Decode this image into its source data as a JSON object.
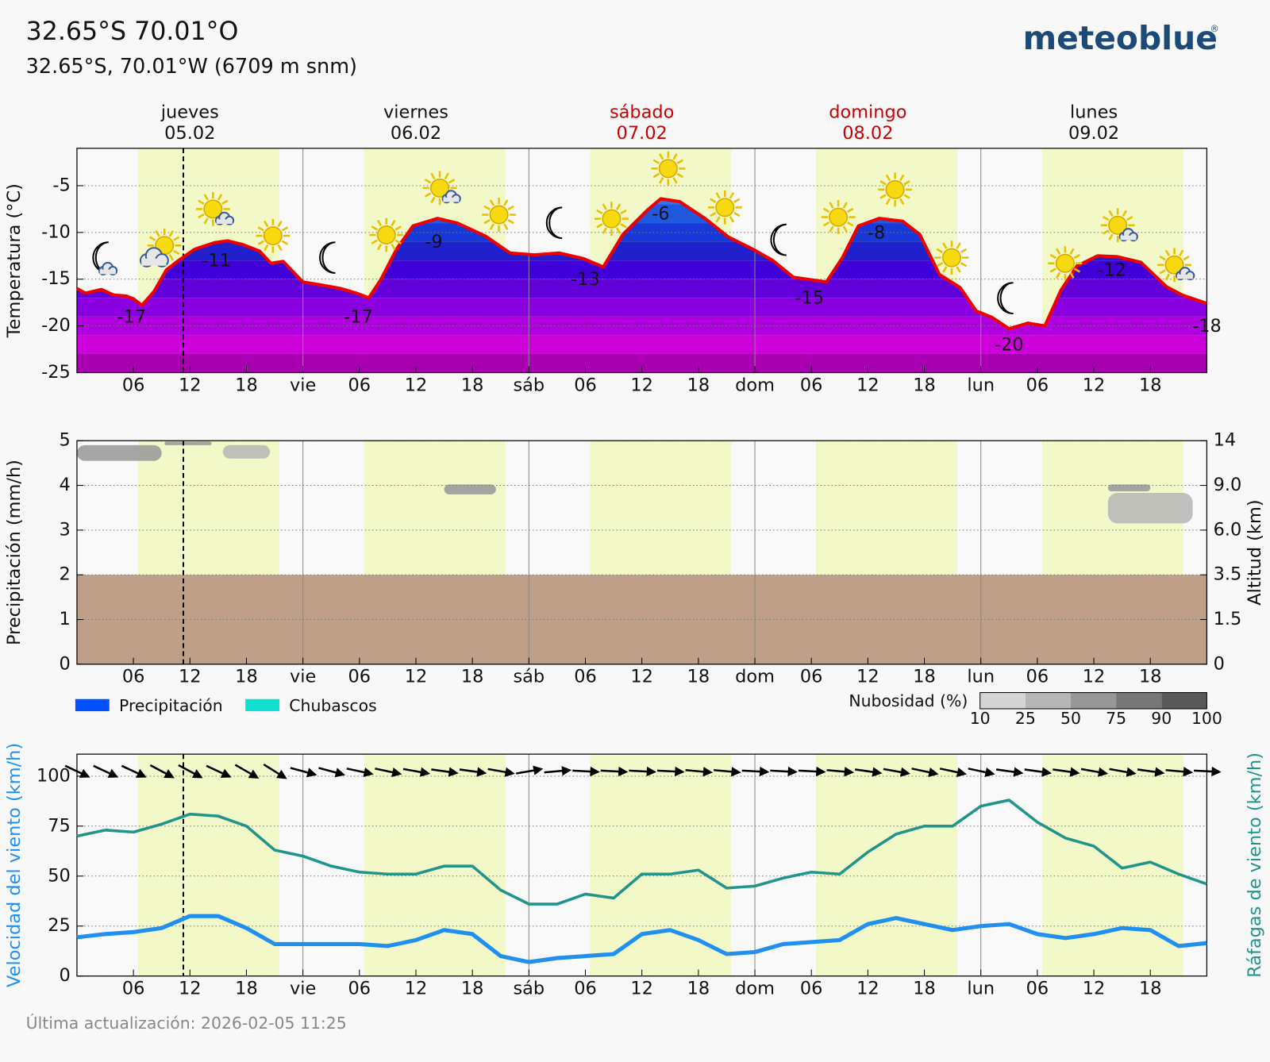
{
  "header": {
    "title": "32.65°S 70.01°O",
    "subtitle": "32.65°S, 70.01°W (6709 m snm)",
    "logo": "meteoblue",
    "registered": "®"
  },
  "footer": "Última actualización: 2026-02-05 11:25",
  "days": [
    {
      "name": "jueves",
      "date": "05.02",
      "color": "#111111"
    },
    {
      "name": "viernes",
      "date": "06.02",
      "color": "#111111"
    },
    {
      "name": "sábado",
      "date": "07.02",
      "color": "#cc0000"
    },
    {
      "name": "domingo",
      "date": "08.02",
      "color": "#cc0000"
    },
    {
      "name": "lunes",
      "date": "09.02",
      "color": "#111111"
    }
  ],
  "time_axis": {
    "xlim": [
      0,
      120
    ],
    "xticks": [
      {
        "value": 6,
        "label": "06"
      },
      12,
      18,
      {
        "value": 24,
        "label": "vie"
      },
      {
        "value": 30,
        "label": "06"
      },
      {
        "value": 36,
        "label": "12"
      },
      {
        "value": 42,
        "label": "18"
      },
      {
        "value": 48,
        "label": "sáb"
      },
      {
        "value": 54,
        "label": "06"
      },
      {
        "value": 60,
        "label": "12"
      },
      {
        "value": 66,
        "label": "18"
      },
      {
        "value": 72,
        "label": "dom"
      },
      {
        "value": 78,
        "label": "06"
      },
      {
        "value": 84,
        "label": "12"
      },
      {
        "value": 90,
        "label": "18"
      },
      {
        "value": 96,
        "label": "lun"
      },
      {
        "value": 102,
        "label": "06"
      },
      {
        "value": 108,
        "label": "12"
      },
      {
        "value": 114,
        "label": "18"
      }
    ],
    "daylight": [
      [
        6.5,
        21.5
      ],
      [
        30.5,
        45.5
      ],
      [
        54.5,
        69.5
      ],
      [
        78.5,
        93.5
      ],
      [
        102.5,
        117.5
      ]
    ],
    "now": 11.3
  },
  "chart_data": [
    {
      "type": "area",
      "y_label": "Temperatura (°C)",
      "ylim": [
        -25,
        -1
      ],
      "yticks": [
        -25,
        -20,
        -15,
        -10,
        -5
      ],
      "grid": true,
      "color": "#ee0000",
      "x": [
        0,
        0.9,
        2.6,
        3.9,
        5.2,
        6,
        6.9,
        8.2,
        9.5,
        10.8,
        12.5,
        14.6,
        16,
        17.6,
        19.4,
        20.6,
        21.9,
        24,
        25.8,
        28,
        29.7,
        31,
        32.3,
        34,
        35.7,
        38.3,
        40.4,
        43.4,
        46,
        48.6,
        51.2,
        53.8,
        55.9,
        58,
        60.6,
        62,
        64,
        66.7,
        69.2,
        71.8,
        73.9,
        76.1,
        79.6,
        81.3,
        83,
        85.2,
        87.7,
        89.5,
        91.6,
        93.8,
        95.5,
        97.2,
        99,
        101,
        102.8,
        104.5,
        106.2,
        108.4,
        110.5,
        113,
        115.7,
        117.4,
        120
      ],
      "values": [
        -16,
        -16.5,
        -16.1,
        -16.7,
        -16.8,
        -17.1,
        -17.8,
        -16.3,
        -14,
        -13,
        -11.8,
        -11.1,
        -10.9,
        -11.3,
        -12,
        -13.3,
        -13.1,
        -15.3,
        -15.6,
        -16,
        -16.5,
        -17,
        -15,
        -11.7,
        -9.3,
        -8.5,
        -9,
        -10.4,
        -12.2,
        -12.4,
        -12.2,
        -12.8,
        -13.7,
        -10.2,
        -7.6,
        -6.4,
        -6.7,
        -8.5,
        -10.5,
        -11.8,
        -13,
        -14.8,
        -15.3,
        -12.7,
        -9.3,
        -8.5,
        -8.8,
        -10.2,
        -14.5,
        -15.9,
        -18.4,
        -19.1,
        -20.3,
        -19.7,
        -20,
        -16.2,
        -13.6,
        -12.5,
        -12.6,
        -13.2,
        -15.8,
        -16.7,
        -17.6
      ],
      "extrema": {
        "x": [
          5.8,
          14.8,
          29.9,
          37.9,
          54,
          62,
          77.8,
          84.9,
          99,
          109.9,
          120
        ],
        "values": [
          -17,
          -11,
          -17,
          -9,
          -13,
          -6,
          -15,
          -8,
          -20,
          -12,
          -18
        ]
      }
    },
    {
      "type": "bar",
      "y_label": "Precipitación (mm/h)",
      "y2_label": "Altitud (km)",
      "ylim": [
        0,
        5
      ],
      "yticks": [
        0,
        1,
        2,
        3,
        4,
        5
      ],
      "grid": true,
      "y2ticks": [
        0,
        1.5,
        3.5,
        {
          "value": 6,
          "label": "6.0"
        },
        {
          "value": 9,
          "label": "9.0"
        },
        14
      ],
      "terrain_altitude": 3.5,
      "terrain_color": "#bf9f88",
      "x": [
        0,
        24,
        48,
        72,
        96,
        120
      ],
      "series": [
        {
          "name": "Precipitación",
          "color": "#0050ff",
          "values": [
            0,
            0,
            0,
            0,
            0,
            0
          ]
        },
        {
          "name": "Chubascos",
          "color": "#10e0d0",
          "values": [
            0,
            0,
            0,
            0,
            0,
            0
          ]
        }
      ],
      "clouds": [
        {
          "x": [
            0,
            9
          ],
          "altitude": [
            11.75,
            13.5
          ],
          "cover": 50
        },
        {
          "x": [
            9.3,
            14.3
          ],
          "altitude": [
            13.5,
            13.9
          ],
          "cover": 50
        },
        {
          "x": [
            15.5,
            20.5
          ],
          "altitude": [
            12,
            13.5
          ],
          "cover": 25
        },
        {
          "x": [
            39,
            44.5
          ],
          "altitude": [
            8.4,
            9.1
          ],
          "cover": 50
        },
        {
          "x": [
            109.5,
            114
          ],
          "altitude": [
            8.6,
            9.1
          ],
          "cover": 50
        },
        {
          "x": [
            109.5,
            118.5
          ],
          "altitude": [
            6.45,
            8.5
          ],
          "cover": 25
        }
      ],
      "colorbar": {
        "label": "Nubosidad (%)",
        "ticks": [
          10,
          25,
          50,
          75,
          90,
          100
        ],
        "colors": [
          "#d4d4d4",
          "#b6b6b6",
          "#979797",
          "#777777",
          "#595959"
        ]
      }
    },
    {
      "type": "line",
      "y_label": "Velocidad del viento (km/h)",
      "y2_label": "Ráfagas de viento (km/h)",
      "ylim": [
        0,
        111
      ],
      "yticks": [
        0,
        25,
        50,
        75,
        100
      ],
      "grid": true,
      "x": [
        0,
        3,
        6,
        9,
        12,
        15,
        18,
        21,
        24,
        27,
        30,
        33,
        36,
        39,
        42,
        45,
        48,
        51,
        54,
        57,
        60,
        63,
        66,
        69,
        72,
        75,
        78,
        81,
        84,
        87,
        90,
        93,
        96,
        99,
        102,
        105,
        108,
        111,
        114,
        117,
        120
      ],
      "series": [
        {
          "name": "Velocidad del viento",
          "color": "#2090f0",
          "values": [
            19.4,
            21,
            22,
            24,
            30,
            30,
            24,
            16,
            16,
            16,
            16,
            15,
            18,
            23,
            21,
            10,
            7,
            9,
            10,
            11,
            21,
            23,
            18,
            11,
            12,
            16,
            17,
            18,
            26,
            29,
            26,
            23,
            25,
            26,
            21,
            19,
            21,
            24,
            23,
            15,
            16.5
          ]
        },
        {
          "name": "Ráfagas de viento",
          "color": "#20958a",
          "values": [
            70,
            73,
            72,
            76,
            81,
            80,
            75,
            63,
            60,
            55,
            52,
            51,
            51,
            55,
            55,
            43,
            36,
            36,
            41,
            39,
            51,
            51,
            53,
            44,
            45,
            49,
            52,
            51,
            62,
            71,
            75,
            75,
            85,
            88,
            77,
            69,
            65,
            54,
            57,
            51,
            46
          ]
        }
      ],
      "direction_deg": [
        25,
        25,
        25,
        28,
        28,
        25,
        30,
        32,
        15,
        15,
        12,
        12,
        10,
        8,
        8,
        10,
        -10,
        -5,
        3,
        3,
        3,
        3,
        5,
        5,
        3,
        3,
        3,
        5,
        8,
        10,
        12,
        12,
        12,
        8,
        8,
        8,
        10,
        10,
        8,
        5,
        3
      ]
    }
  ]
}
